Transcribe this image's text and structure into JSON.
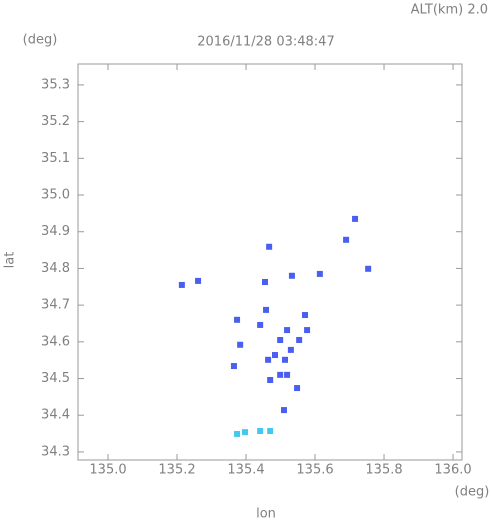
{
  "chart_data": {
    "type": "scatter",
    "title": "2016/11/28 03:48:47",
    "annotation": "ALT(km) 2.0",
    "xlabel": "lon",
    "ylabel": "lat",
    "x_unit": "(deg)",
    "y_unit": "(deg)",
    "xlim": [
      134.913,
      136.026
    ],
    "ylim": [
      34.278,
      35.357
    ],
    "xticks": [
      {
        "value": 135,
        "label": "135.0"
      },
      135.2,
      135.4,
      135.6,
      135.8,
      {
        "value": 136,
        "label": "136.0"
      }
    ],
    "yticks": [
      35.3,
      35.2,
      35.1,
      {
        "value": 35,
        "label": "35.0"
      },
      34.9,
      34.8,
      34.7,
      34.6,
      34.5,
      34.4,
      34.3
    ],
    "series": [
      {
        "color": "#4a5ef0",
        "x": [
          135.214,
          135.716,
          135.69,
          135.754,
          135.374,
          135.441,
          135.458,
          135.499,
          135.519,
          135.571,
          135.577,
          135.554,
          135.484,
          135.513,
          135.499,
          135.519,
          135.47,
          135.548,
          135.365,
          135.51,
          135.464,
          135.53,
          135.383,
          135.467,
          135.455,
          135.533,
          135.614,
          135.261
        ],
        "y": [
          34.755,
          34.935,
          34.878,
          34.799,
          34.66,
          34.646,
          34.687,
          34.605,
          34.632,
          34.673,
          34.632,
          34.605,
          34.564,
          34.551,
          34.51,
          34.51,
          34.496,
          34.474,
          34.534,
          34.414,
          34.551,
          34.578,
          34.592,
          34.859,
          34.763,
          34.78,
          34.785,
          34.766
        ]
      },
      {
        "color": "#45c8f0",
        "x": [
          135.374,
          135.397,
          135.441,
          135.47
        ],
        "y": [
          34.349,
          34.354,
          34.357,
          34.357
        ]
      }
    ]
  }
}
